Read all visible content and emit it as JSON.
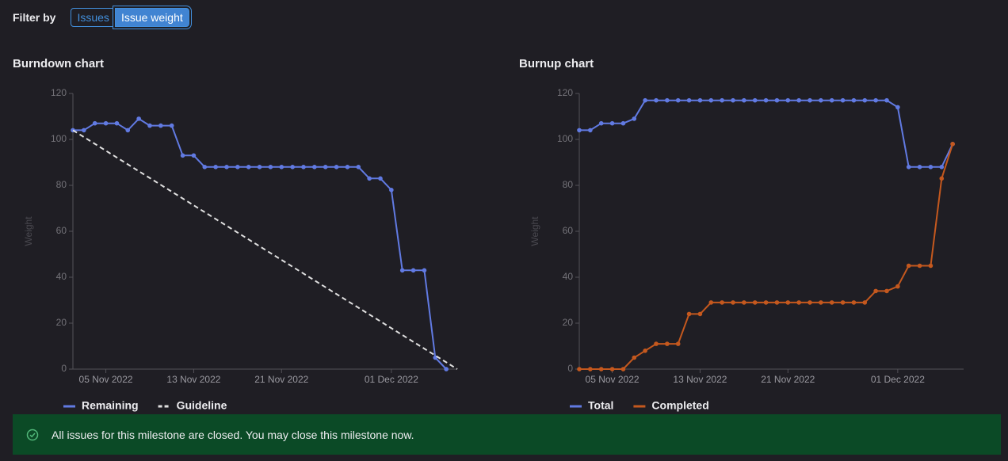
{
  "filter": {
    "label": "Filter by",
    "options": [
      "Issues",
      "Issue weight"
    ],
    "selected_index": 1
  },
  "chart_data": [
    {
      "type": "line",
      "title": "Burndown chart",
      "y_label": "Weight",
      "x": [
        "2022-11-02",
        "2022-11-03",
        "2022-11-04",
        "2022-11-05",
        "2022-11-06",
        "2022-11-07",
        "2022-11-08",
        "2022-11-09",
        "2022-11-10",
        "2022-11-11",
        "2022-11-12",
        "2022-11-13",
        "2022-11-14",
        "2022-11-15",
        "2022-11-16",
        "2022-11-17",
        "2022-11-18",
        "2022-11-19",
        "2022-11-20",
        "2022-11-21",
        "2022-11-22",
        "2022-11-23",
        "2022-11-24",
        "2022-11-25",
        "2022-11-26",
        "2022-11-27",
        "2022-11-28",
        "2022-11-29",
        "2022-11-30",
        "2022-12-01",
        "2022-12-02",
        "2022-12-03",
        "2022-12-04",
        "2022-12-05",
        "2022-12-06"
      ],
      "series": [
        {
          "name": "Remaining",
          "color": "#617ae2",
          "markers": true,
          "values": [
            104,
            104,
            107,
            107,
            107,
            104,
            109,
            106,
            106,
            106,
            93,
            93,
            88,
            88,
            88,
            88,
            88,
            88,
            88,
            88,
            88,
            88,
            88,
            88,
            88,
            88,
            88,
            83,
            83,
            78,
            43,
            43,
            43,
            5,
            0
          ]
        },
        {
          "name": "Guideline",
          "color": "#e0e0e0",
          "dashed": true,
          "markers": false,
          "x": [
            "2022-11-02",
            "2022-12-07"
          ],
          "values": [
            104,
            0
          ]
        }
      ],
      "xlim": [
        "2022-11-02",
        "2022-12-07"
      ],
      "xticks": [
        {
          "value": "2022-11-05",
          "label": "05 Nov 2022"
        },
        {
          "value": "2022-11-13",
          "label": "13 Nov 2022"
        },
        {
          "value": "2022-11-21",
          "label": "21 Nov 2022"
        },
        {
          "value": "2022-12-01",
          "label": "01 Dec 2022"
        }
      ],
      "ylim": [
        0,
        120
      ],
      "yticks": [
        0,
        20,
        40,
        60,
        80,
        100,
        120
      ],
      "legend": "bottom-left"
    },
    {
      "type": "line",
      "title": "Burnup chart",
      "y_label": "Weight",
      "x": [
        "2022-11-02",
        "2022-11-03",
        "2022-11-04",
        "2022-11-05",
        "2022-11-06",
        "2022-11-07",
        "2022-11-08",
        "2022-11-09",
        "2022-11-10",
        "2022-11-11",
        "2022-11-12",
        "2022-11-13",
        "2022-11-14",
        "2022-11-15",
        "2022-11-16",
        "2022-11-17",
        "2022-11-18",
        "2022-11-19",
        "2022-11-20",
        "2022-11-21",
        "2022-11-22",
        "2022-11-23",
        "2022-11-24",
        "2022-11-25",
        "2022-11-26",
        "2022-11-27",
        "2022-11-28",
        "2022-11-29",
        "2022-11-30",
        "2022-12-01",
        "2022-12-02",
        "2022-12-03",
        "2022-12-04",
        "2022-12-05",
        "2022-12-06"
      ],
      "series": [
        {
          "name": "Total",
          "color": "#617ae2",
          "markers": true,
          "values": [
            104,
            104,
            107,
            107,
            107,
            109,
            117,
            117,
            117,
            117,
            117,
            117,
            117,
            117,
            117,
            117,
            117,
            117,
            117,
            117,
            117,
            117,
            117,
            117,
            117,
            117,
            117,
            117,
            117,
            114,
            88,
            88,
            88,
            88,
            98
          ]
        },
        {
          "name": "Completed",
          "color": "#c4581e",
          "markers": true,
          "values": [
            0,
            0,
            0,
            0,
            0,
            5,
            8,
            11,
            11,
            11,
            24,
            24,
            29,
            29,
            29,
            29,
            29,
            29,
            29,
            29,
            29,
            29,
            29,
            29,
            29,
            29,
            29,
            34,
            34,
            36,
            45,
            45,
            45,
            83,
            98
          ]
        }
      ],
      "xlim": [
        "2022-11-02",
        "2022-12-07"
      ],
      "xticks": [
        {
          "value": "2022-11-05",
          "label": "05 Nov 2022"
        },
        {
          "value": "2022-11-13",
          "label": "13 Nov 2022"
        },
        {
          "value": "2022-11-21",
          "label": "21 Nov 2022"
        },
        {
          "value": "2022-12-01",
          "label": "01 Dec 2022"
        }
      ],
      "ylim": [
        0,
        120
      ],
      "yticks": [
        0,
        20,
        40,
        60,
        80,
        100,
        120
      ],
      "legend": "bottom-left"
    }
  ],
  "alert": {
    "message": "All issues for this milestone are closed. You may close this milestone now."
  }
}
